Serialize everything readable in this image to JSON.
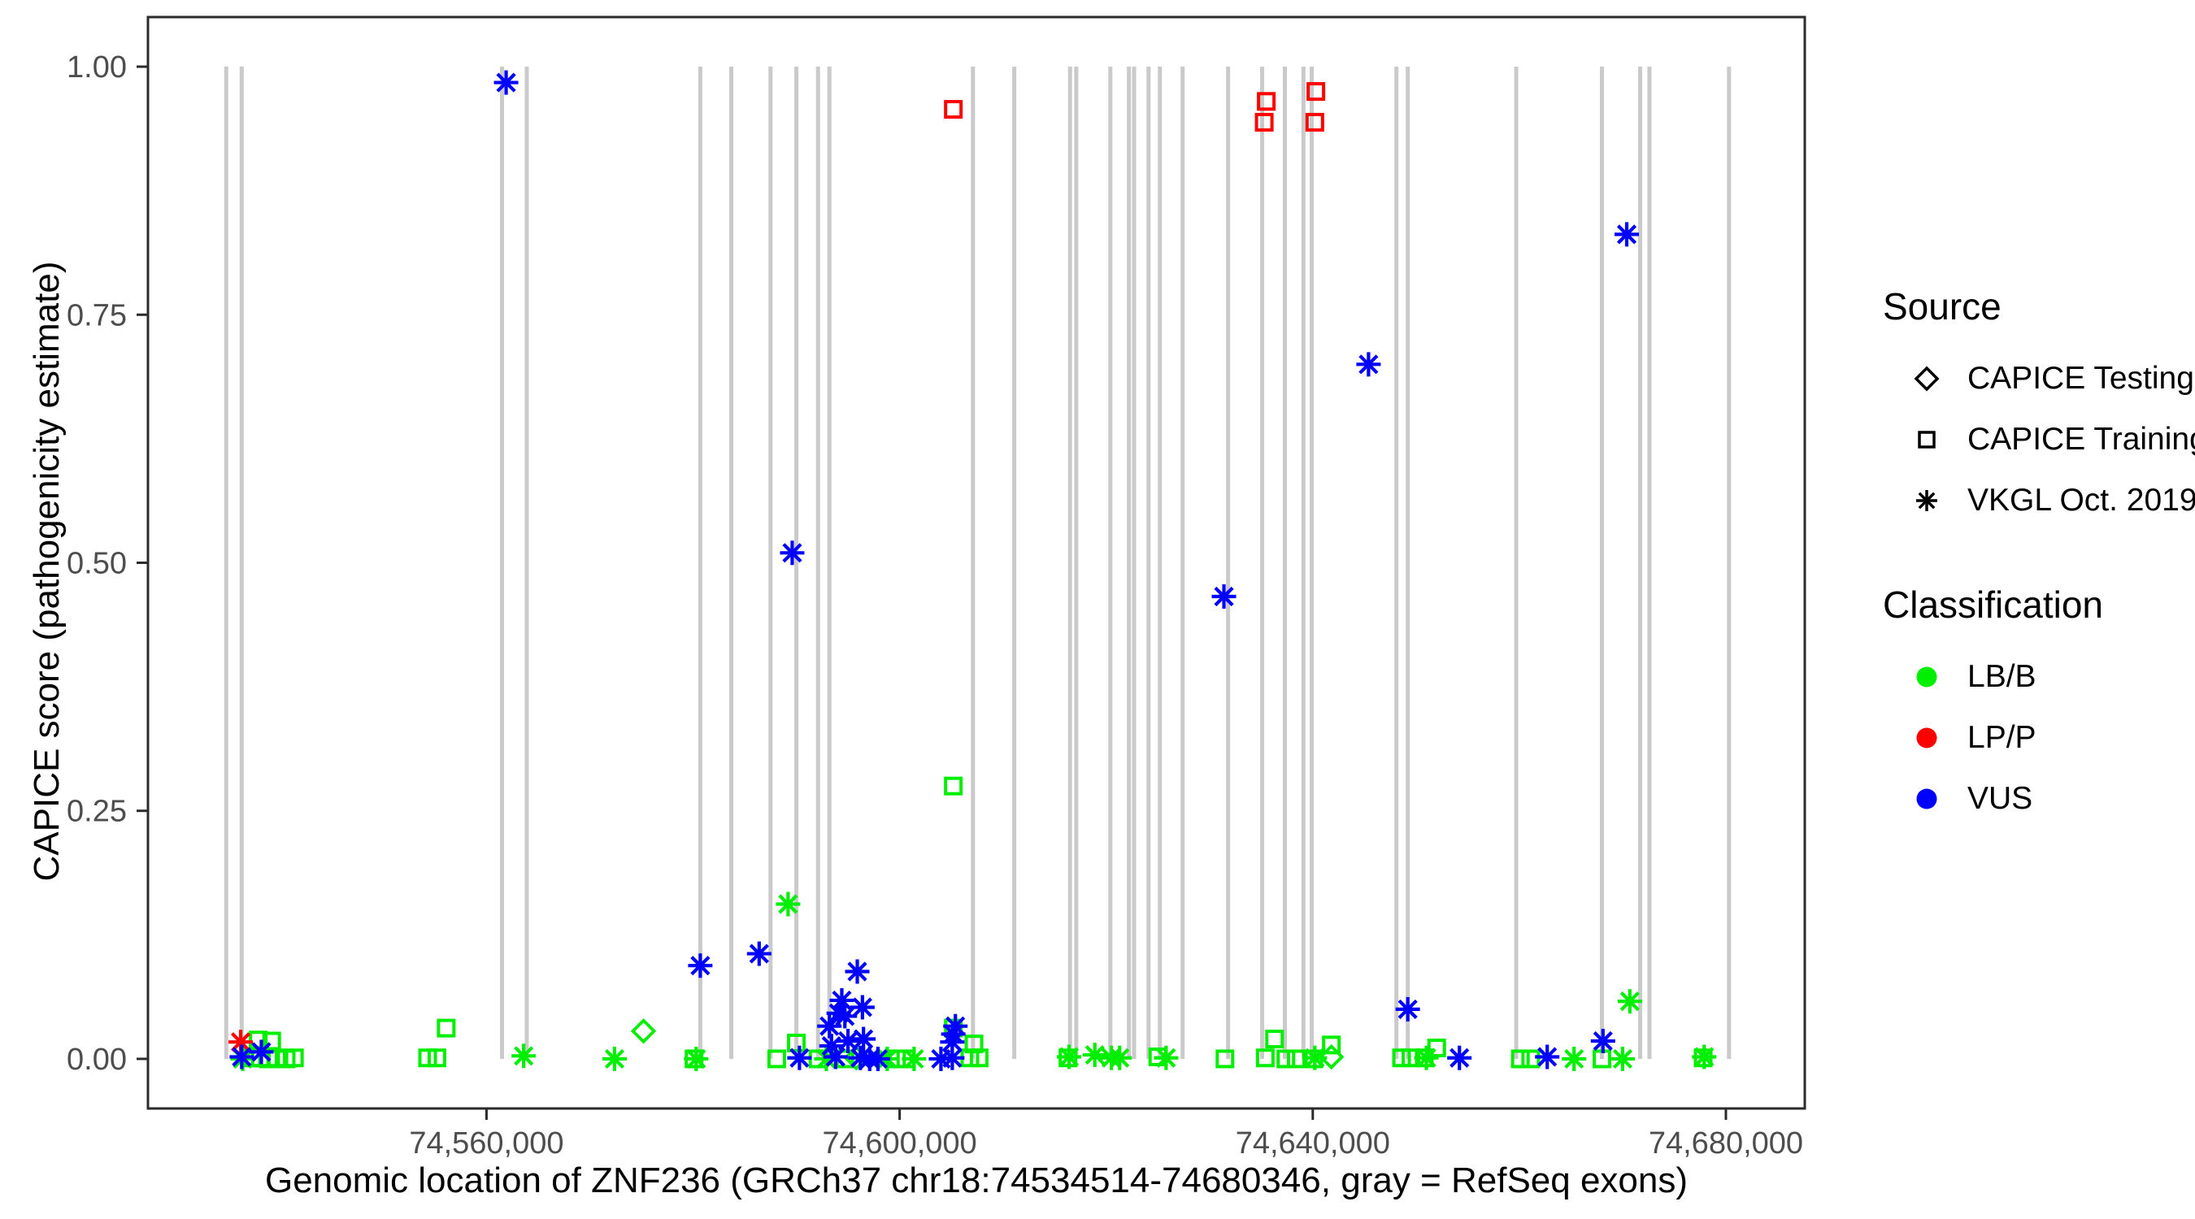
{
  "figure": {
    "background": "#ffffff"
  },
  "axes": {
    "x_label": "Genomic location of ZNF236 (GRCh37 chr18:74534514-74680346, gray = RefSeq exons)",
    "y_label": "CAPICE score (pathogenicity estimate)"
  },
  "legend": {
    "source": {
      "title": "Source",
      "items": [
        {
          "label": "CAPICE Testing",
          "glyph": "diamond"
        },
        {
          "label": "CAPICE Training",
          "glyph": "square"
        },
        {
          "label": "VKGL Oct. 2019",
          "glyph": "asterisk"
        }
      ]
    },
    "classification": {
      "title": "Classification",
      "items": [
        {
          "label": "LB/B",
          "color": "#00EE00"
        },
        {
          "label": "LP/P",
          "color": "#FF0000"
        },
        {
          "label": "VUS",
          "color": "#0000FF"
        }
      ]
    }
  },
  "chart_data": {
    "type": "scatter",
    "title": "",
    "xlabel": "Genomic location of ZNF236 (GRCh37 chr18:74534514-74680346, gray = RefSeq exons)",
    "ylabel": "CAPICE score (pathogenicity estimate)",
    "x_range": [
      74527222,
      74687638
    ],
    "y_range": [
      -0.05,
      1.05
    ],
    "x_ticks": [
      {
        "value": 74560000,
        "label": "74,560,000"
      },
      {
        "value": 74600000,
        "label": "74,600,000"
      },
      {
        "value": 74640000,
        "label": "74,640,000"
      },
      {
        "value": 74680000,
        "label": "74,680,000"
      }
    ],
    "y_ticks": [
      {
        "value": 0.0,
        "label": "0.00"
      },
      {
        "value": 0.25,
        "label": "0.25"
      },
      {
        "value": 0.5,
        "label": "0.50"
      },
      {
        "value": 0.75,
        "label": "0.75"
      },
      {
        "value": 1.0,
        "label": "1.00"
      }
    ],
    "grid": false,
    "legend_position": "right",
    "exon_line_color": "#CACACA",
    "exon_lines_y_span": [
      0,
      1
    ],
    "exon_positions": [
      74534800,
      74536300,
      74561500,
      74563900,
      74580700,
      74583700,
      74587500,
      74590000,
      74592100,
      74593200,
      74607100,
      74611100,
      74616500,
      74617100,
      74620400,
      74622200,
      74622700,
      74624100,
      74625200,
      74627400,
      74631800,
      74635100,
      74637300,
      74639100,
      74639900,
      74648100,
      74649200,
      74659700,
      74668000,
      74671700,
      74672600,
      74680300
    ],
    "source_shape_map": {
      "testing": "diamond",
      "training": "square",
      "vkgl": "asterisk"
    },
    "classification_color_map": {
      "LB/B": "#00EE00",
      "LP/P": "#FF0000",
      "VUS": "#0000FF"
    },
    "point_columns": [
      "genomic_position",
      "capice_score",
      "source",
      "classification"
    ],
    "points": [
      [
        74537900,
        0.019,
        "training",
        "LB/B"
      ],
      [
        74539200,
        0.018,
        "training",
        "LB/B"
      ],
      [
        74537300,
        0.001,
        "training",
        "LB/B"
      ],
      [
        74538100,
        0.001,
        "training",
        "LB/B"
      ],
      [
        74538900,
        0.0,
        "training",
        "LB/B"
      ],
      [
        74539700,
        0.001,
        "training",
        "LB/B"
      ],
      [
        74540600,
        0.0,
        "training",
        "LB/B"
      ],
      [
        74541400,
        0.001,
        "training",
        "LB/B"
      ],
      [
        74554300,
        0.001,
        "training",
        "LB/B"
      ],
      [
        74555200,
        0.001,
        "training",
        "LB/B"
      ],
      [
        74556100,
        0.031,
        "training",
        "LB/B"
      ],
      [
        74580100,
        0.0,
        "training",
        "LB/B"
      ],
      [
        74588100,
        0.0,
        "training",
        "LB/B"
      ],
      [
        74590000,
        0.016,
        "training",
        "LB/B"
      ],
      [
        74592100,
        0.0,
        "training",
        "LB/B"
      ],
      [
        74594700,
        0.0,
        "training",
        "LB/B"
      ],
      [
        74599700,
        0.0,
        "training",
        "LB/B"
      ],
      [
        74600600,
        0.0,
        "training",
        "LB/B"
      ],
      [
        74605200,
        0.275,
        "training",
        "LB/B"
      ],
      [
        74605200,
        0.031,
        "training",
        "LB/B"
      ],
      [
        74607200,
        0.015,
        "training",
        "LB/B"
      ],
      [
        74606800,
        0.001,
        "training",
        "LB/B"
      ],
      [
        74607700,
        0.001,
        "training",
        "LB/B"
      ],
      [
        74616300,
        0.001,
        "training",
        "LB/B"
      ],
      [
        74625000,
        0.002,
        "training",
        "LB/B"
      ],
      [
        74631500,
        0.0,
        "training",
        "LB/B"
      ],
      [
        74635400,
        0.001,
        "training",
        "LB/B"
      ],
      [
        74636300,
        0.02,
        "training",
        "LB/B"
      ],
      [
        74637400,
        0.0,
        "training",
        "LB/B"
      ],
      [
        74638400,
        0.0,
        "training",
        "LB/B"
      ],
      [
        74640100,
        0.0,
        "training",
        "LB/B"
      ],
      [
        74641800,
        0.014,
        "training",
        "LB/B"
      ],
      [
        74648600,
        0.001,
        "training",
        "LB/B"
      ],
      [
        74649500,
        0.001,
        "training",
        "LB/B"
      ],
      [
        74650800,
        0.001,
        "training",
        "LB/B"
      ],
      [
        74652000,
        0.011,
        "training",
        "LB/B"
      ],
      [
        74660100,
        0.0,
        "training",
        "LB/B"
      ],
      [
        74661100,
        0.0,
        "training",
        "LB/B"
      ],
      [
        74668000,
        0.0,
        "training",
        "LB/B"
      ],
      [
        74677800,
        0.001,
        "training",
        "LB/B"
      ],
      [
        74536400,
        0.0,
        "vkgl",
        "LB/B"
      ],
      [
        74563600,
        0.003,
        "vkgl",
        "LB/B"
      ],
      [
        74572400,
        0.0,
        "vkgl",
        "LB/B"
      ],
      [
        74580300,
        0.0,
        "vkgl",
        "LB/B"
      ],
      [
        74589200,
        0.156,
        "vkgl",
        "LB/B"
      ],
      [
        74592900,
        0.0,
        "vkgl",
        "LB/B"
      ],
      [
        74598800,
        0.0,
        "vkgl",
        "LB/B"
      ],
      [
        74601400,
        0.0,
        "vkgl",
        "LB/B"
      ],
      [
        74616400,
        0.002,
        "vkgl",
        "LB/B"
      ],
      [
        74618900,
        0.004,
        "vkgl",
        "LB/B"
      ],
      [
        74620500,
        0.001,
        "vkgl",
        "LB/B"
      ],
      [
        74621300,
        0.001,
        "vkgl",
        "LB/B"
      ],
      [
        74625800,
        0.001,
        "vkgl",
        "LB/B"
      ],
      [
        74640200,
        0.001,
        "vkgl",
        "LB/B"
      ],
      [
        74651000,
        0.001,
        "vkgl",
        "LB/B"
      ],
      [
        74665300,
        0.0,
        "vkgl",
        "LB/B"
      ],
      [
        74670000,
        0.0,
        "vkgl",
        "LB/B"
      ],
      [
        74670700,
        0.058,
        "vkgl",
        "LB/B"
      ],
      [
        74677900,
        0.002,
        "vkgl",
        "LB/B"
      ],
      [
        74575200,
        0.028,
        "testing",
        "LB/B"
      ],
      [
        74595800,
        0.001,
        "testing",
        "LB/B"
      ],
      [
        74641800,
        0.002,
        "testing",
        "LB/B"
      ],
      [
        74536200,
        0.017,
        "vkgl",
        "LP/P"
      ],
      [
        74605200,
        0.957,
        "training",
        "LP/P"
      ],
      [
        74635500,
        0.965,
        "training",
        "LP/P"
      ],
      [
        74635300,
        0.944,
        "training",
        "LP/P"
      ],
      [
        74640300,
        0.975,
        "training",
        "LP/P"
      ],
      [
        74640200,
        0.944,
        "training",
        "LP/P"
      ],
      [
        74536300,
        0.002,
        "vkgl",
        "VUS"
      ],
      [
        74538200,
        0.007,
        "vkgl",
        "VUS"
      ],
      [
        74561900,
        0.984,
        "vkgl",
        "VUS"
      ],
      [
        74580700,
        0.094,
        "vkgl",
        "VUS"
      ],
      [
        74586400,
        0.106,
        "vkgl",
        "VUS"
      ],
      [
        74589600,
        0.51,
        "vkgl",
        "VUS"
      ],
      [
        74590300,
        0.001,
        "vkgl",
        "VUS"
      ],
      [
        74593200,
        0.033,
        "vkgl",
        "VUS"
      ],
      [
        74593400,
        0.013,
        "vkgl",
        "VUS"
      ],
      [
        74593800,
        0.002,
        "vkgl",
        "VUS"
      ],
      [
        74594100,
        0.046,
        "vkgl",
        "VUS"
      ],
      [
        74594400,
        0.059,
        "vkgl",
        "VUS"
      ],
      [
        74594700,
        0.043,
        "vkgl",
        "VUS"
      ],
      [
        74595000,
        0.018,
        "vkgl",
        "VUS"
      ],
      [
        74595900,
        0.088,
        "vkgl",
        "VUS"
      ],
      [
        74596200,
        0.001,
        "vkgl",
        "VUS"
      ],
      [
        74596400,
        0.052,
        "vkgl",
        "VUS"
      ],
      [
        74596500,
        0.02,
        "vkgl",
        "VUS"
      ],
      [
        74597100,
        0.0,
        "vkgl",
        "VUS"
      ],
      [
        74597900,
        0.0,
        "vkgl",
        "VUS"
      ],
      [
        74604000,
        0.0,
        "vkgl",
        "VUS"
      ],
      [
        74605400,
        0.033,
        "vkgl",
        "VUS"
      ],
      [
        74605200,
        0.025,
        "vkgl",
        "VUS"
      ],
      [
        74605100,
        0.017,
        "vkgl",
        "VUS"
      ],
      [
        74605100,
        0.001,
        "vkgl",
        "VUS"
      ],
      [
        74631400,
        0.466,
        "vkgl",
        "VUS"
      ],
      [
        74645400,
        0.7,
        "vkgl",
        "VUS"
      ],
      [
        74649200,
        0.05,
        "vkgl",
        "VUS"
      ],
      [
        74654200,
        0.001,
        "vkgl",
        "VUS"
      ],
      [
        74662700,
        0.002,
        "vkgl",
        "VUS"
      ],
      [
        74668100,
        0.018,
        "vkgl",
        "VUS"
      ],
      [
        74670400,
        0.831,
        "vkgl",
        "VUS"
      ]
    ]
  }
}
